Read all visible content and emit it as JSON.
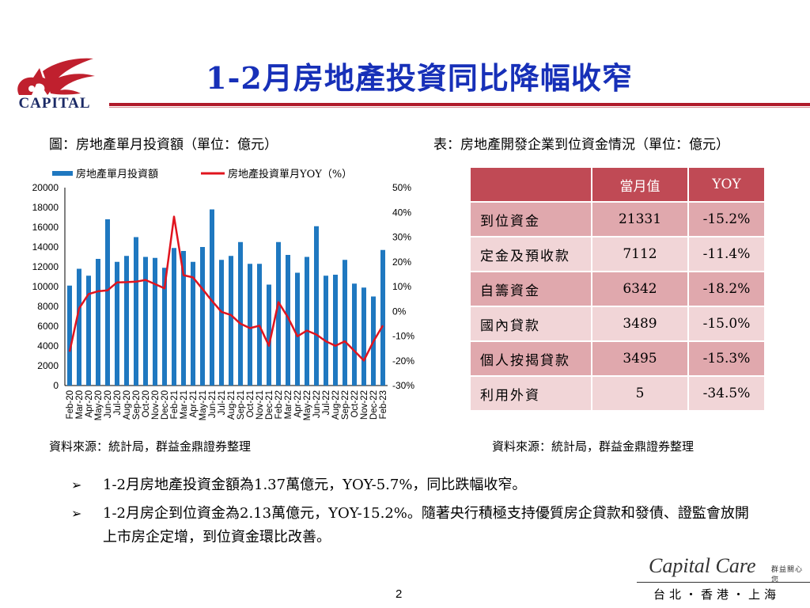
{
  "logo": {
    "text": "CAPITAL",
    "icon": "capital-logo-icon",
    "color": "#c0202e"
  },
  "title": "1-2月房地產投資同比降幅收窄",
  "chart_caption": "圖：房地產單月投資額（單位：億元）",
  "table_caption": "表：房地產開發企業到位資金情況（單位：億元）",
  "chart_data": {
    "type": "bar",
    "categories": [
      "Feb-20",
      "Mar-20",
      "Apr-20",
      "May-20",
      "Jun-20",
      "Jul-20",
      "Aug-20",
      "Sep-20",
      "Oct-20",
      "Nov-20",
      "Dec-20",
      "Feb-21",
      "Mar-21",
      "Apr-21",
      "May-21",
      "Jun-21",
      "Jul-21",
      "Aug-21",
      "Sep-21",
      "Oct-21",
      "Nov-21",
      "Dec-21",
      "Feb-22",
      "Mar-22",
      "Apr-22",
      "May-22",
      "Jun-22",
      "Jul-22",
      "Aug-22",
      "Sep-22",
      "Oct-22",
      "Nov-22",
      "Dec-22",
      "Feb-23"
    ],
    "series": [
      {
        "name": "房地產單月投資額",
        "type": "bar",
        "axis": "left",
        "color": "#1f78c0",
        "values": [
          10100,
          11800,
          11100,
          12800,
          16800,
          12500,
          13100,
          15000,
          13000,
          12900,
          11900,
          13900,
          13600,
          12500,
          14000,
          17800,
          12700,
          13100,
          14500,
          12300,
          12300,
          10200,
          14500,
          13200,
          11400,
          13000,
          16100,
          11100,
          11200,
          12700,
          10300,
          9900,
          9000,
          13700
        ]
      },
      {
        "name": "房地產投資單月YOY（%）",
        "type": "line",
        "axis": "right",
        "color": "#e0141e",
        "values": [
          -16.3,
          1.2,
          7.0,
          8.1,
          8.5,
          11.7,
          11.8,
          12.0,
          12.7,
          11.0,
          9.3,
          38.3,
          14.6,
          13.7,
          9.0,
          4.2,
          -0.2,
          -1.5,
          -5.0,
          -6.8,
          -5.8,
          -13.9,
          3.7,
          -2.4,
          -10.1,
          -7.8,
          -9.4,
          -12.1,
          -13.9,
          -12.1,
          -16.0,
          -19.9,
          -12.2,
          -5.7
        ]
      }
    ],
    "ylim_left": [
      0,
      20000
    ],
    "yticks_left": [
      "0",
      "2000",
      "4000",
      "6000",
      "8000",
      "10000",
      "12000",
      "14000",
      "16000",
      "18000",
      "20000"
    ],
    "ylim_right": [
      -30,
      50
    ],
    "yticks_right": [
      "-30%",
      "-20%",
      "-10%",
      "0%",
      "10%",
      "20%",
      "30%",
      "40%",
      "50%"
    ],
    "legend_position": "top",
    "grid": false
  },
  "table": {
    "headers": [
      "",
      "當月值",
      "YOY"
    ],
    "rows": [
      {
        "label": "到位資金",
        "value": "21331",
        "yoy": "-15.2%"
      },
      {
        "label": "定金及預收款",
        "value": "7112",
        "yoy": "-11.4%"
      },
      {
        "label": "自籌資金",
        "value": "6342",
        "yoy": "-18.2%"
      },
      {
        "label": "國內貸款",
        "value": "3489",
        "yoy": "-15.0%"
      },
      {
        "label": "個人按揭貸款",
        "value": "3495",
        "yoy": "-15.3%"
      },
      {
        "label": "利用外資",
        "value": "5",
        "yoy": "-34.5%"
      }
    ],
    "header_color": "#c04a55"
  },
  "source_left": "資料來源：統計局，群益金鼎證券整理",
  "source_right": "資料來源：統計局，群益金鼎證券整理",
  "bullets": [
    "1-2月房地產投資金額為1.37萬億元，YOY-5.7%，同比跌幅收窄。",
    "1-2月房企到位資金為2.13萬億元，YOY-15.2%。隨著央行積極支持優質房企貸款和發債、證監會放開上市房企定增，到位資金環比改善。"
  ],
  "bullet_icon": "arrowhead-bullet-icon",
  "page_number": "2",
  "footer": {
    "brand": "Capital Care",
    "brand_sub": "群益關心您",
    "cities": "台北・香港・上海"
  }
}
